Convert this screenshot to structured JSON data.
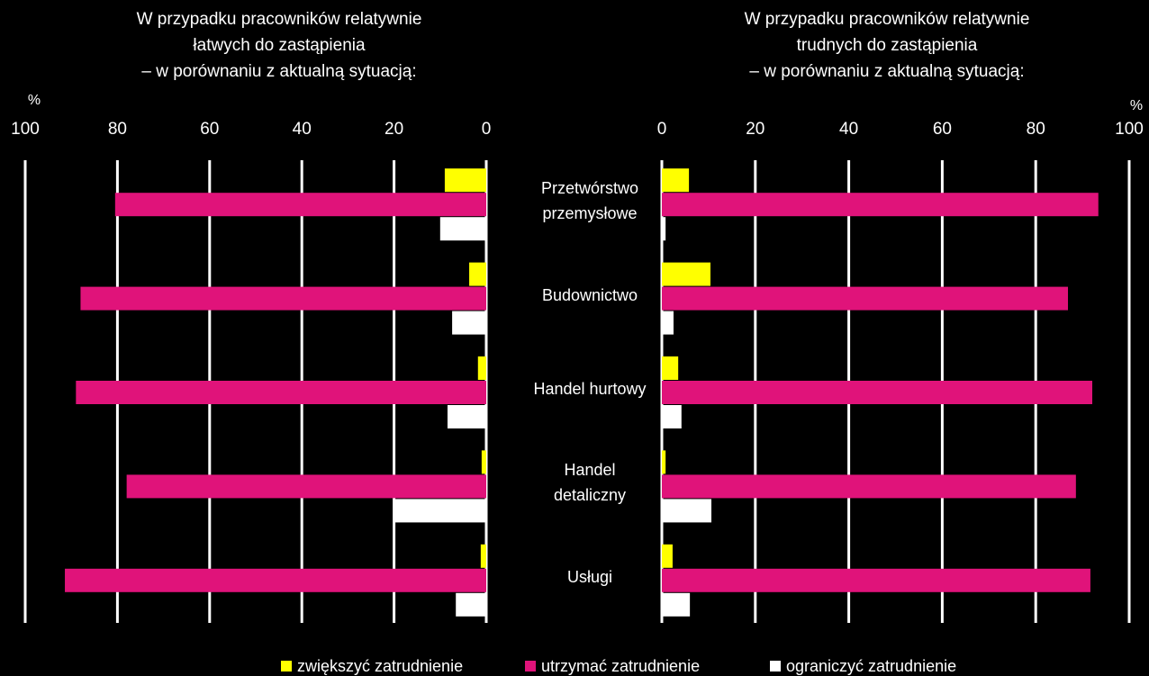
{
  "chart_data": [
    {
      "type": "hbar",
      "title": [
        "W przypadku pracowników relatywnie",
        "łatwych do zastąpienia",
        "– w porównaniu z aktualną sytuacją:"
      ],
      "unit": "%",
      "xlim": [
        100,
        0
      ],
      "xticks": [
        100,
        80,
        60,
        40,
        20,
        0
      ],
      "grid": true,
      "series": [
        {
          "name": "zwiększyć zatrudnienie",
          "color": "#ffff00",
          "values": [
            9,
            3.7,
            1.8,
            1,
            1.2
          ]
        },
        {
          "name": "utrzymać zatrudnienie",
          "color": "#e0137a",
          "values": [
            80.5,
            88,
            89,
            78,
            91.4
          ]
        },
        {
          "name": "ograniczyć zatrudnienie",
          "color": "#ffffff",
          "values": [
            10,
            7.4,
            8.4,
            20,
            6.6
          ]
        }
      ]
    },
    {
      "type": "hbar",
      "title": [
        "W przypadku pracowników relatywnie",
        "trudnych do zastąpienia",
        "– w porównaniu z aktualną sytuacją:"
      ],
      "unit": "%",
      "categories": [
        "Przetwórstwo przemysłowe",
        "Budownictwo",
        "Handel hurtowy",
        "Handel detaliczny",
        "Usługi"
      ],
      "xlim": [
        0,
        100
      ],
      "xticks": [
        0,
        20,
        40,
        60,
        80,
        100
      ],
      "grid": true,
      "series": [
        {
          "color": "#ffff00",
          "values": [
            5.8,
            10.4,
            3.5,
            0.8,
            2.3
          ]
        },
        {
          "color": "#e0137a",
          "values": [
            93.4,
            86.9,
            92.1,
            88.6,
            91.7
          ]
        },
        {
          "color": "#ffffff",
          "values": [
            0.8,
            2.5,
            4.2,
            10.6,
            6
          ]
        }
      ]
    }
  ]
}
